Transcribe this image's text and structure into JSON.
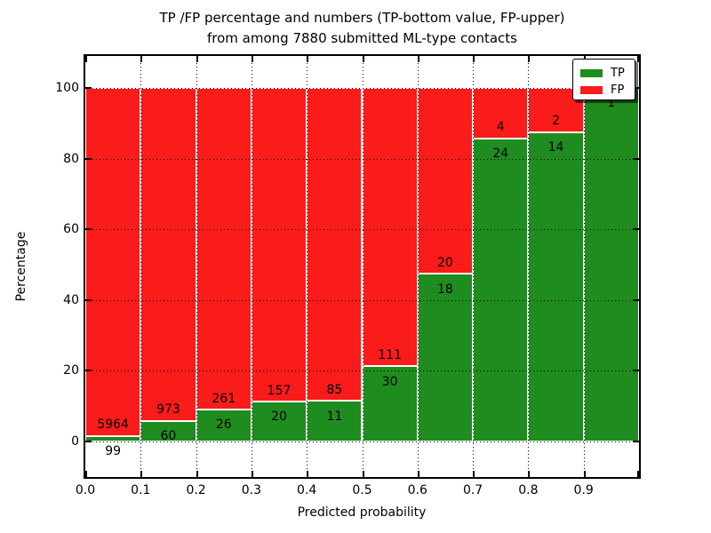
{
  "header": {
    "title_line1": "TP /FP percentage and numbers (TP-bottom value, FP-upper)",
    "title_line2": "from among 7880 submitted ML-type contacts"
  },
  "axes": {
    "ylabel": "Percentage",
    "xlabel": "Predicted probability",
    "x_tick_labels": [
      "0.0",
      "0.1",
      "0.2",
      "0.3",
      "0.4",
      "0.5",
      "0.6",
      "0.7",
      "0.8",
      "0.9"
    ],
    "y_tick_labels": [
      "0",
      "20",
      "40",
      "60",
      "80",
      "100"
    ]
  },
  "legend": {
    "position": "upper-right",
    "items": [
      {
        "label": "TP",
        "color": "#1e8c1e"
      },
      {
        "label": "FP",
        "color": "#fa1b1b"
      }
    ]
  },
  "colors": {
    "tp_green": "#1e8c1e",
    "fp_red": "#fa1b1b",
    "background": "#ffffff",
    "grid": "#000000",
    "bar_edge": "#ffffff"
  },
  "chart_data": {
    "type": "bar",
    "stacked": true,
    "normalized_to_percent": true,
    "title": "TP /FP percentage and numbers (TP-bottom value, FP-upper) from among 7880 submitted ML-type contacts",
    "xlabel": "Predicted probability",
    "ylabel": "Percentage",
    "total_contacts": 7880,
    "bin_edges": [
      0.0,
      0.1,
      0.2,
      0.3,
      0.4,
      0.5,
      0.6,
      0.7,
      0.8,
      0.9,
      1.0
    ],
    "y_ticks": [
      0,
      20,
      40,
      60,
      80,
      100
    ],
    "ylim": [
      -10,
      110
    ],
    "xlim": [
      0.0,
      1.0
    ],
    "grid": {
      "style": "dotted",
      "color": "#000000",
      "on_top": true
    },
    "legend_position": "upper right",
    "series": [
      {
        "name": "TP",
        "color": "#1e8c1e",
        "counts": [
          99,
          60,
          26,
          20,
          11,
          30,
          18,
          24,
          14,
          1
        ]
      },
      {
        "name": "FP",
        "color": "#fa1b1b",
        "counts": [
          5964,
          973,
          261,
          157,
          85,
          111,
          20,
          4,
          2,
          0
        ]
      }
    ],
    "tp_percent_per_bin": [
      1.63,
      5.81,
      9.06,
      11.3,
      11.46,
      21.28,
      47.37,
      85.71,
      87.5,
      100.0
    ],
    "bar_value_labels": "raw TP and FP counts printed on each bar (TP below boundary, FP above)"
  }
}
